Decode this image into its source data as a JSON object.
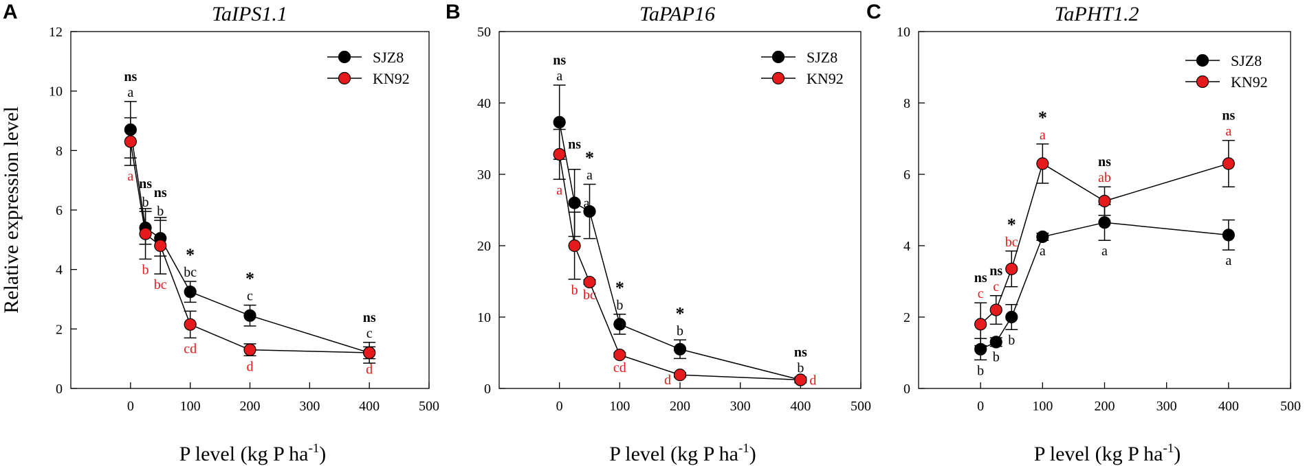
{
  "figure": {
    "ylabel": "Relative expression level",
    "xlabel": {
      "main": "P level (kg P ha",
      "sup": "-1",
      "tail": ")"
    }
  },
  "colors": {
    "SJZ8": "#000000",
    "KN92": "#e41a1c"
  },
  "chart_data": [
    {
      "panel": "A",
      "title": "TaIPS1.1",
      "type": "line",
      "x": [
        0,
        25,
        50,
        100,
        200,
        400
      ],
      "xlim": [
        -100,
        500
      ],
      "xticks": [
        0,
        100,
        200,
        300,
        400,
        500
      ],
      "ylim": [
        0,
        12
      ],
      "yticks": [
        0,
        2,
        4,
        6,
        8,
        10,
        12
      ],
      "legend": [
        "SJZ8",
        "KN92"
      ],
      "series": [
        {
          "name": "SJZ8",
          "values": [
            8.7,
            5.4,
            5.05,
            3.25,
            2.45,
            1.2
          ],
          "errors": [
            0.95,
            0.55,
            0.6,
            0.35,
            0.35,
            0.35
          ],
          "letters": [
            "a",
            "b",
            "b",
            "bc",
            "c",
            "c"
          ]
        },
        {
          "name": "KN92",
          "values": [
            8.3,
            5.2,
            4.8,
            2.15,
            1.3,
            1.2
          ],
          "errors": [
            0.8,
            0.85,
            0.95,
            0.45,
            0.2,
            0.2
          ],
          "letters": [
            "a",
            "b",
            "bc",
            "cd",
            "d",
            "d"
          ]
        }
      ],
      "significance": [
        "ns",
        "ns",
        "ns",
        "*",
        "*",
        "ns"
      ]
    },
    {
      "panel": "B",
      "title": "TaPAP16",
      "type": "line",
      "x": [
        0,
        25,
        50,
        100,
        200,
        400
      ],
      "xlim": [
        -100,
        500
      ],
      "xticks": [
        0,
        100,
        200,
        300,
        400,
        500
      ],
      "ylim": [
        0,
        50
      ],
      "yticks": [
        0,
        10,
        20,
        30,
        40,
        50
      ],
      "legend": [
        "SJZ8",
        "KN92"
      ],
      "series": [
        {
          "name": "SJZ8",
          "values": [
            37.3,
            26,
            24.8,
            9,
            5.5,
            1.2
          ],
          "errors": [
            5.2,
            4.7,
            3.8,
            1.4,
            1.3,
            0.4
          ],
          "letters": [
            "a",
            "a",
            "a",
            "b",
            "b",
            "b"
          ]
        },
        {
          "name": "KN92",
          "values": [
            32.8,
            20,
            14.9,
            4.7,
            1.9,
            1.2
          ],
          "errors": [
            3.5,
            4.7,
            0.3,
            0.3,
            0.3,
            0.2
          ],
          "letters": [
            "a",
            "b",
            "bc",
            "cd",
            "d",
            "d"
          ]
        }
      ],
      "significance": [
        "ns",
        "ns",
        "*",
        "*",
        "*",
        "ns"
      ]
    },
    {
      "panel": "C",
      "title": "TaPHT1.2",
      "type": "line",
      "x": [
        0,
        25,
        50,
        100,
        200,
        400
      ],
      "xlim": [
        -100,
        500
      ],
      "xticks": [
        0,
        100,
        200,
        300,
        400,
        500
      ],
      "ylim": [
        0,
        10
      ],
      "yticks": [
        0,
        2,
        4,
        6,
        8,
        10
      ],
      "legend": [
        "SJZ8",
        "KN92"
      ],
      "series": [
        {
          "name": "SJZ8",
          "values": [
            1.1,
            1.3,
            2.0,
            4.25,
            4.65,
            4.3
          ],
          "errors": [
            0.3,
            0.12,
            0.35,
            0.1,
            0.5,
            0.42
          ],
          "letters": [
            "b",
            "b",
            "b",
            "a",
            "a",
            "a"
          ]
        },
        {
          "name": "KN92",
          "values": [
            1.8,
            2.2,
            3.35,
            6.3,
            5.25,
            6.3
          ],
          "errors": [
            0.6,
            0.4,
            0.5,
            0.55,
            0.4,
            0.65
          ],
          "letters": [
            "c",
            "c",
            "bc",
            "a",
            "ab",
            "a"
          ]
        }
      ],
      "significance": [
        "ns",
        "ns",
        "*",
        "*",
        "ns",
        "ns"
      ]
    }
  ]
}
